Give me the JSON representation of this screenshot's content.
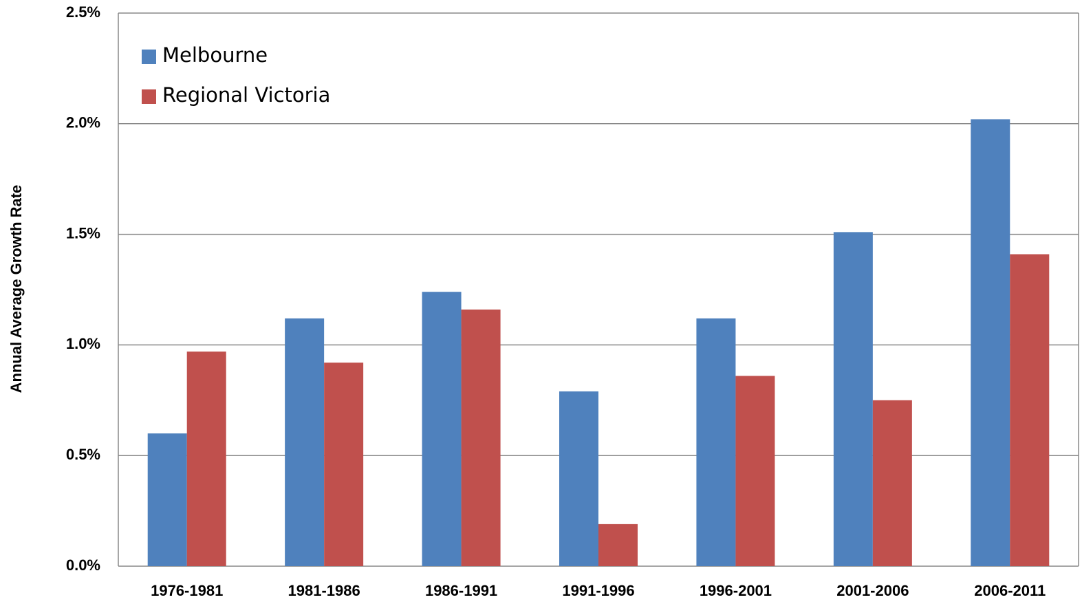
{
  "chart_data": {
    "type": "bar",
    "y_axis_label": "Annual Average Growth Rate",
    "categories": [
      "1976-1981",
      "1981-1986",
      "1986-1991",
      "1991-1996",
      "1996-2001",
      "2001-2006",
      "2006-2011"
    ],
    "series": [
      {
        "name": "Melbourne",
        "color": "#4f81bd",
        "values": [
          0.6,
          1.12,
          1.24,
          0.79,
          1.12,
          1.51,
          2.02
        ]
      },
      {
        "name": "Regional Victoria",
        "color": "#c0504d",
        "values": [
          0.97,
          0.92,
          1.16,
          0.19,
          0.86,
          0.75,
          1.41
        ]
      }
    ],
    "ylim": [
      0,
      2.5
    ],
    "yticks": [
      {
        "value": 0,
        "label": "0.0%"
      },
      {
        "value": 0.5,
        "label": "0.5%"
      },
      {
        "value": 1.0,
        "label": "1.0%"
      },
      {
        "value": 1.5,
        "label": "1.5%"
      },
      {
        "value": 2.0,
        "label": "2.0%"
      },
      {
        "value": 2.5,
        "label": "2.5%"
      }
    ],
    "grid": true,
    "legend": "top-left"
  }
}
